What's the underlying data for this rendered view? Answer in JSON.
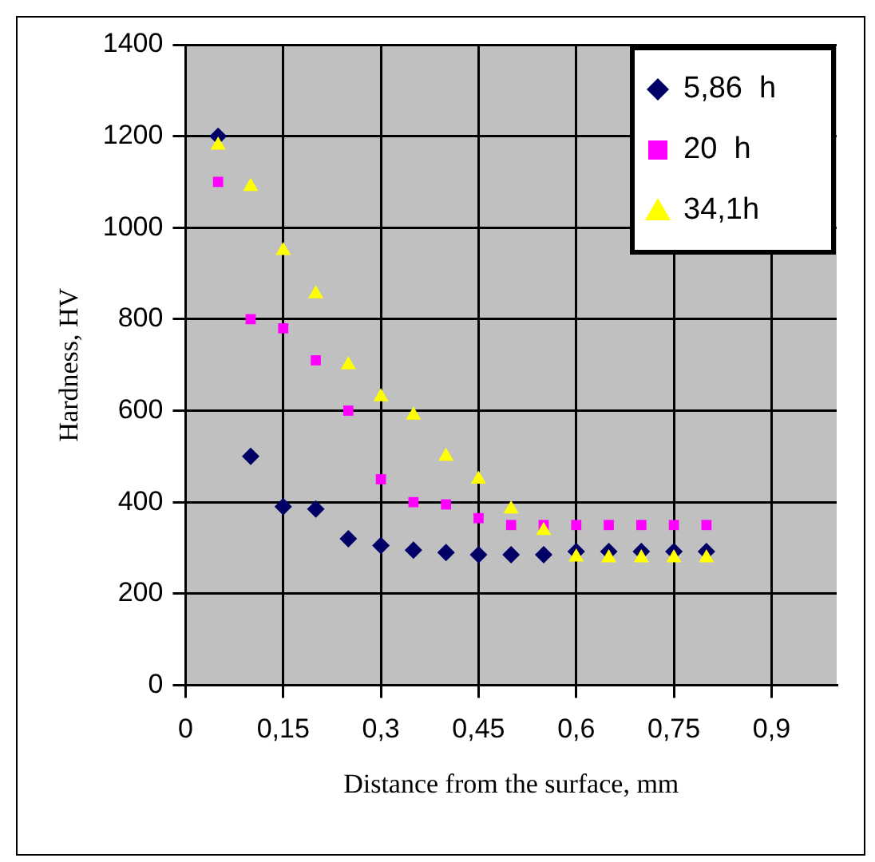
{
  "chart_data": {
    "type": "scatter",
    "xlabel": "Distance from the surface, mm",
    "ylabel": "Hardness, HV",
    "x": [
      0.05,
      0.1,
      0.15,
      0.2,
      0.25,
      0.3,
      0.35,
      0.4,
      0.45,
      0.5,
      0.55,
      0.6,
      0.65,
      0.7,
      0.75,
      0.8
    ],
    "series": [
      {
        "name": "5,86  h",
        "color": "#000066",
        "marker": "diamond",
        "values": [
          1200,
          500,
          390,
          385,
          320,
          305,
          295,
          290,
          285,
          285,
          285,
          292,
          292,
          292,
          292,
          292
        ]
      },
      {
        "name": "20  h",
        "color": "#ff00ff",
        "marker": "square",
        "values": [
          1100,
          800,
          780,
          710,
          600,
          450,
          400,
          395,
          365,
          350,
          350,
          350,
          350,
          350,
          350,
          350
        ]
      },
      {
        "name": "34,1h",
        "color": "#ffff00",
        "marker": "triangle",
        "values": [
          1180,
          1090,
          950,
          855,
          700,
          630,
          590,
          500,
          450,
          385,
          338,
          280,
          278,
          278,
          278,
          278
        ]
      }
    ],
    "xlim": [
      0,
      1
    ],
    "xticks": [
      {
        "value": 0,
        "label": "0"
      },
      {
        "value": 0.15,
        "label": "0,15"
      },
      {
        "value": 0.3,
        "label": "0,3"
      },
      {
        "value": 0.45,
        "label": "0,45"
      },
      {
        "value": 0.6,
        "label": "0,6"
      },
      {
        "value": 0.75,
        "label": "0,75"
      },
      {
        "value": 0.9,
        "label": "0,9"
      }
    ],
    "ylim": [
      0,
      1400
    ],
    "yticks": [
      0,
      200,
      400,
      600,
      800,
      1000,
      1200,
      1400
    ],
    "grid": true,
    "legend": "top right"
  }
}
